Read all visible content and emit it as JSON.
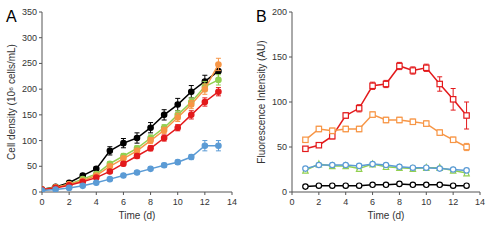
{
  "chart_data": [
    {
      "type": "line",
      "title": "A",
      "x_label": "Time (d)",
      "y_label": "Cell density (10⁶ cells/mL)",
      "x": [
        0,
        1,
        2,
        3,
        4,
        5,
        6,
        7,
        8,
        9,
        10,
        11,
        12,
        13
      ],
      "xlim": [
        0,
        14
      ],
      "xticks": [
        0,
        2,
        4,
        6,
        8,
        10,
        12,
        14
      ],
      "ylim": [
        0,
        350
      ],
      "yticks": [
        0,
        50,
        100,
        150,
        200,
        250,
        300,
        350
      ],
      "grid": false,
      "series": [
        {
          "color": "#000000",
          "marker": "circle",
          "values": [
            5,
            10,
            18,
            32,
            45,
            80,
            95,
            105,
            125,
            150,
            170,
            195,
            215,
            235
          ],
          "errors": [
            1,
            1,
            2,
            3,
            4,
            8,
            9,
            10,
            10,
            10,
            12,
            12,
            12,
            15
          ]
        },
        {
          "color": "#92d050",
          "marker": "circle",
          "values": [
            5,
            9,
            15,
            25,
            35,
            55,
            70,
            85,
            105,
            125,
            150,
            175,
            205,
            218
          ],
          "errors": [
            1,
            1,
            2,
            2,
            3,
            4,
            5,
            5,
            6,
            6,
            8,
            8,
            10,
            10
          ]
        },
        {
          "color": "#f79646",
          "marker": "circle",
          "values": [
            5,
            9,
            15,
            22,
            32,
            50,
            65,
            80,
            100,
            120,
            145,
            170,
            200,
            248
          ],
          "errors": [
            1,
            1,
            1,
            2,
            3,
            4,
            5,
            5,
            6,
            6,
            8,
            8,
            10,
            12
          ]
        },
        {
          "color": "#e31a1c",
          "marker": "circle",
          "values": [
            5,
            8,
            13,
            20,
            28,
            40,
            55,
            70,
            85,
            105,
            125,
            150,
            175,
            195
          ],
          "errors": [
            1,
            1,
            1,
            2,
            2,
            3,
            4,
            5,
            5,
            6,
            6,
            8,
            8,
            8
          ]
        },
        {
          "color": "#5b9bd5",
          "marker": "circle",
          "values": [
            3,
            5,
            8,
            12,
            18,
            25,
            32,
            38,
            45,
            52,
            58,
            68,
            90,
            90
          ],
          "errors": [
            1,
            1,
            1,
            1,
            2,
            2,
            3,
            3,
            3,
            4,
            4,
            5,
            10,
            10
          ]
        }
      ]
    },
    {
      "type": "line",
      "title": "B",
      "x_label": "Time (d)",
      "y_label": "Fluorescence Intensity (AU)",
      "x": [
        1,
        2,
        3,
        4,
        5,
        6,
        7,
        8,
        9,
        10,
        11,
        12,
        13
      ],
      "xlim": [
        0,
        14
      ],
      "xticks": [
        0,
        2,
        4,
        6,
        8,
        10,
        12,
        14
      ],
      "ylim": [
        0,
        200
      ],
      "yticks": [
        0,
        50,
        100,
        150,
        200
      ],
      "grid": false,
      "series": [
        {
          "color": "#e31a1c",
          "marker": "open-square",
          "values": [
            48,
            52,
            62,
            85,
            93,
            118,
            120,
            140,
            135,
            138,
            120,
            103,
            85
          ],
          "errors": [
            2,
            2,
            3,
            3,
            4,
            4,
            4,
            4,
            4,
            4,
            8,
            12,
            15
          ]
        },
        {
          "color": "#f79646",
          "marker": "open-square",
          "values": [
            58,
            70,
            68,
            70,
            70,
            86,
            80,
            80,
            78,
            76,
            66,
            58,
            50
          ],
          "errors": [
            2,
            3,
            3,
            3,
            3,
            3,
            3,
            3,
            3,
            3,
            3,
            3,
            4
          ]
        },
        {
          "color": "#92d050",
          "marker": "open-triangle",
          "values": [
            24,
            31,
            29,
            29,
            26,
            31,
            28,
            27,
            26,
            27,
            27,
            24,
            21
          ],
          "errors": [
            1,
            1,
            1,
            1,
            1,
            1,
            1,
            1,
            1,
            1,
            1,
            1,
            1
          ]
        },
        {
          "color": "#5b9bd5",
          "marker": "open-circle",
          "values": [
            26,
            30,
            30,
            30,
            29,
            31,
            30,
            28,
            27,
            27,
            26,
            25,
            24
          ],
          "errors": [
            1,
            1,
            1,
            1,
            1,
            1,
            1,
            1,
            1,
            1,
            1,
            1,
            1
          ]
        },
        {
          "color": "#000000",
          "marker": "open-circle",
          "values": [
            6,
            7,
            7,
            7,
            7,
            8,
            8,
            9,
            8,
            8,
            8,
            7,
            7
          ],
          "errors": [
            1,
            1,
            1,
            1,
            1,
            1,
            1,
            1,
            1,
            1,
            1,
            1,
            1
          ]
        }
      ]
    }
  ]
}
